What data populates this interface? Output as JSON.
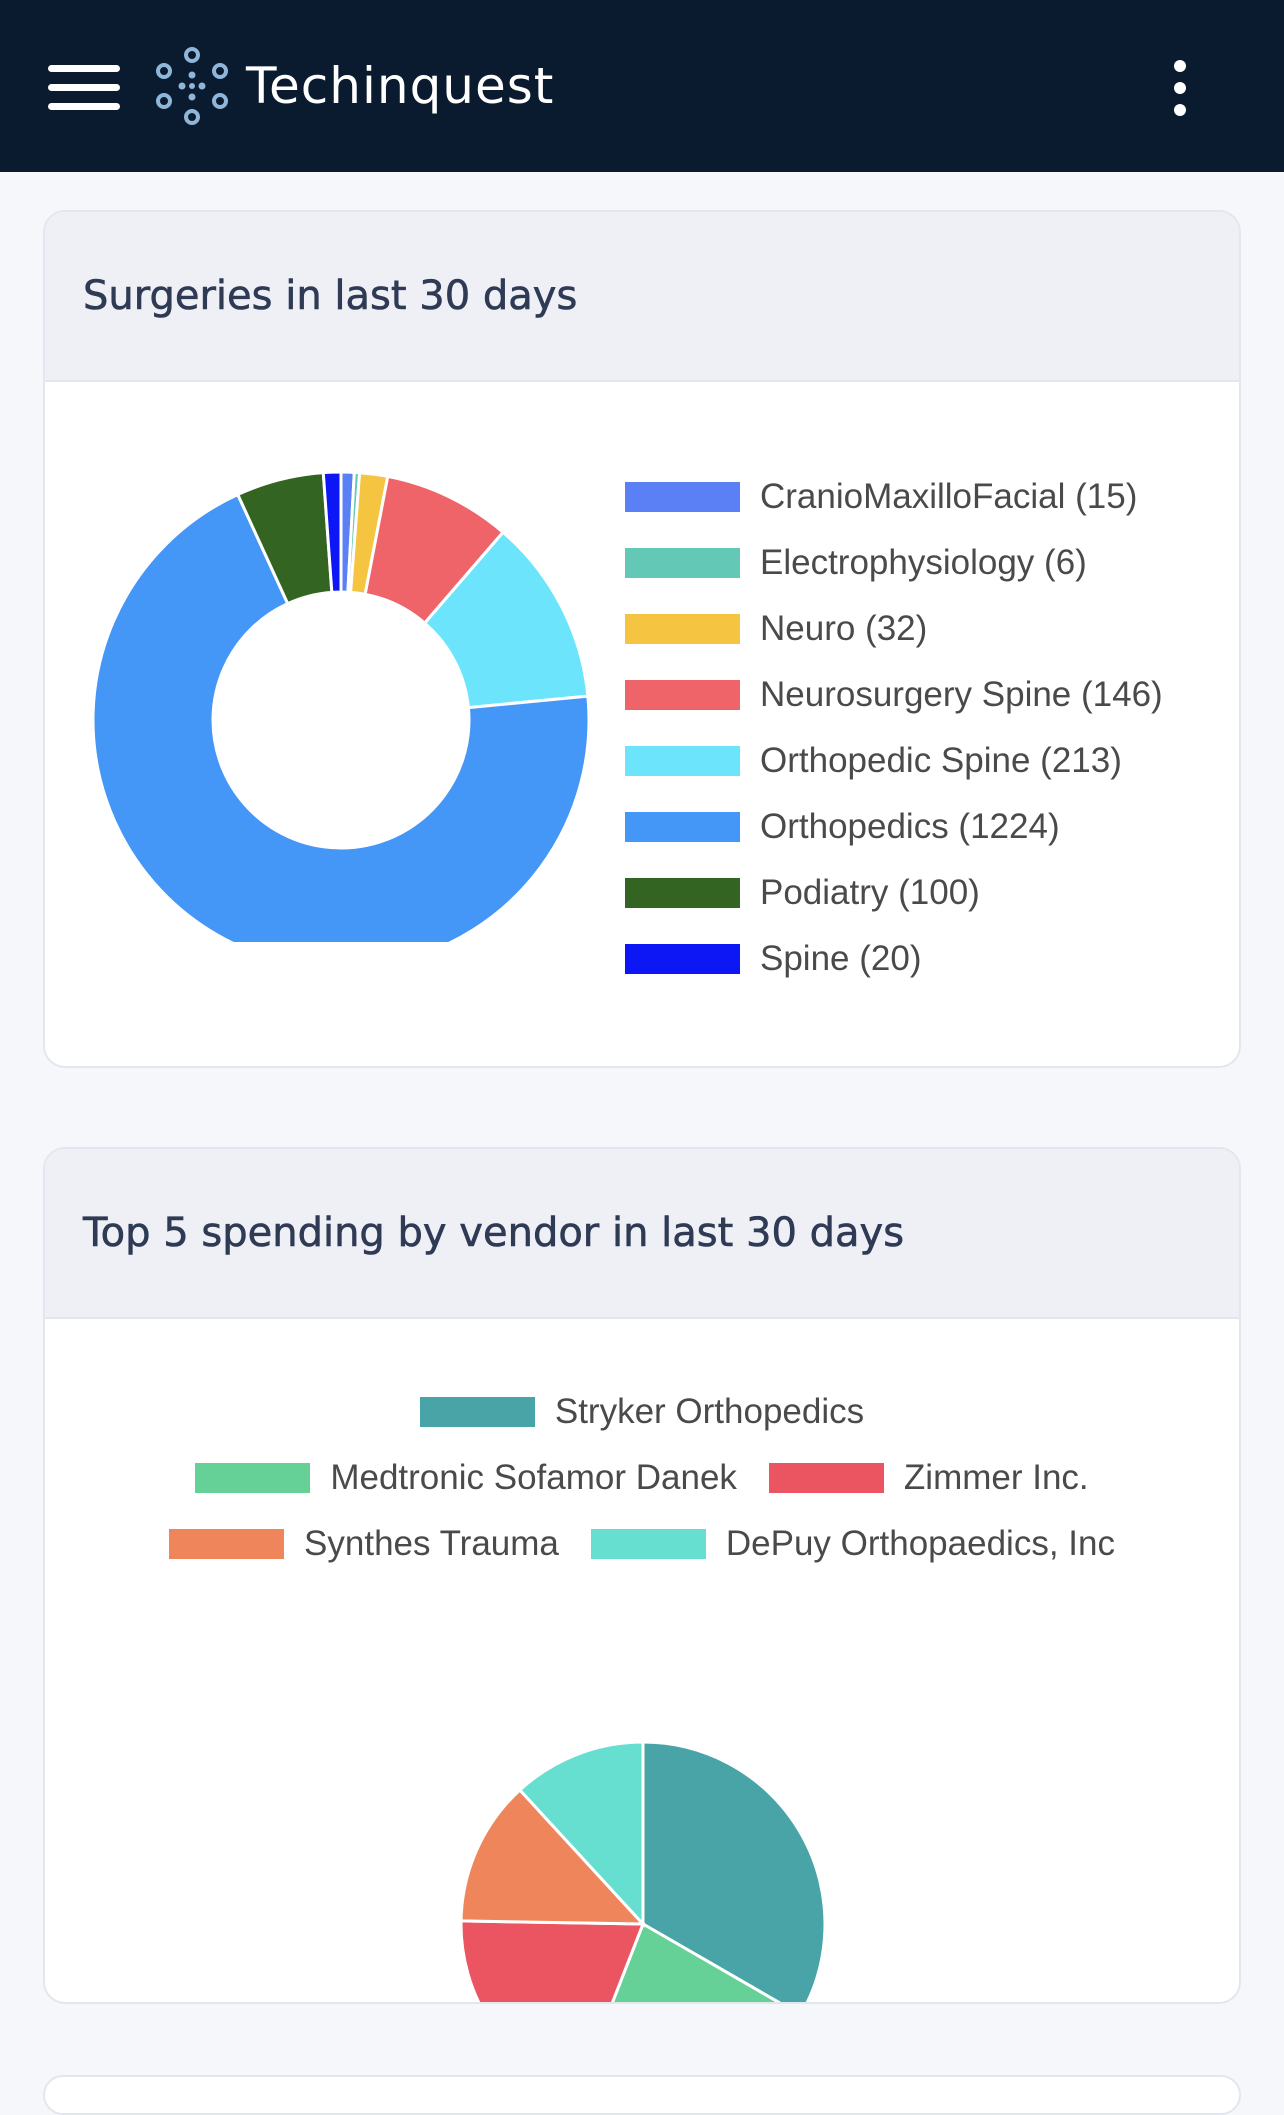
{
  "header": {
    "brand": "Techinquest",
    "menu_icon": "hamburger-menu-icon",
    "logo_icon": "dots-logo-icon",
    "more_icon": "vertical-dots-icon",
    "background": "#0a1a2f"
  },
  "surgeries_card": {
    "title": "Surgeries in last 30 days"
  },
  "vendor_card": {
    "title": "Top 5 spending by vendor in last 30 days"
  },
  "chart_data": [
    {
      "type": "pie",
      "variant": "doughnut",
      "title": "",
      "legend_position": "right",
      "categories": [
        "CranioMaxilloFacial (15)",
        "Electrophysiology (6)",
        "Neuro (32)",
        "Neurosurgery Spine (146)",
        "Orthopedic Spine (213)",
        "Orthopedics (1224)",
        "Podiatry (100)",
        "Spine (20)"
      ],
      "values": [
        15,
        6,
        32,
        146,
        213,
        1224,
        100,
        20
      ],
      "colors": [
        "#5b7ff5",
        "#63c9b6",
        "#f5c542",
        "#ef6469",
        "#6ce5fc",
        "#4496f7",
        "#346422",
        "#0d16f5"
      ]
    },
    {
      "type": "pie",
      "title": "",
      "legend_position": "top",
      "categories": [
        "Stryker Orthopedics",
        "Medtronic Sofamor Danek",
        "Zimmer Inc.",
        "Synthes Trauma",
        "DePuy Orthopaedics, Inc"
      ],
      "values": [
        31,
        21,
        18,
        12,
        11
      ],
      "colors": [
        "#49a4a7",
        "#66d197",
        "#eb5461",
        "#ef865b",
        "#66ded0"
      ]
    }
  ]
}
